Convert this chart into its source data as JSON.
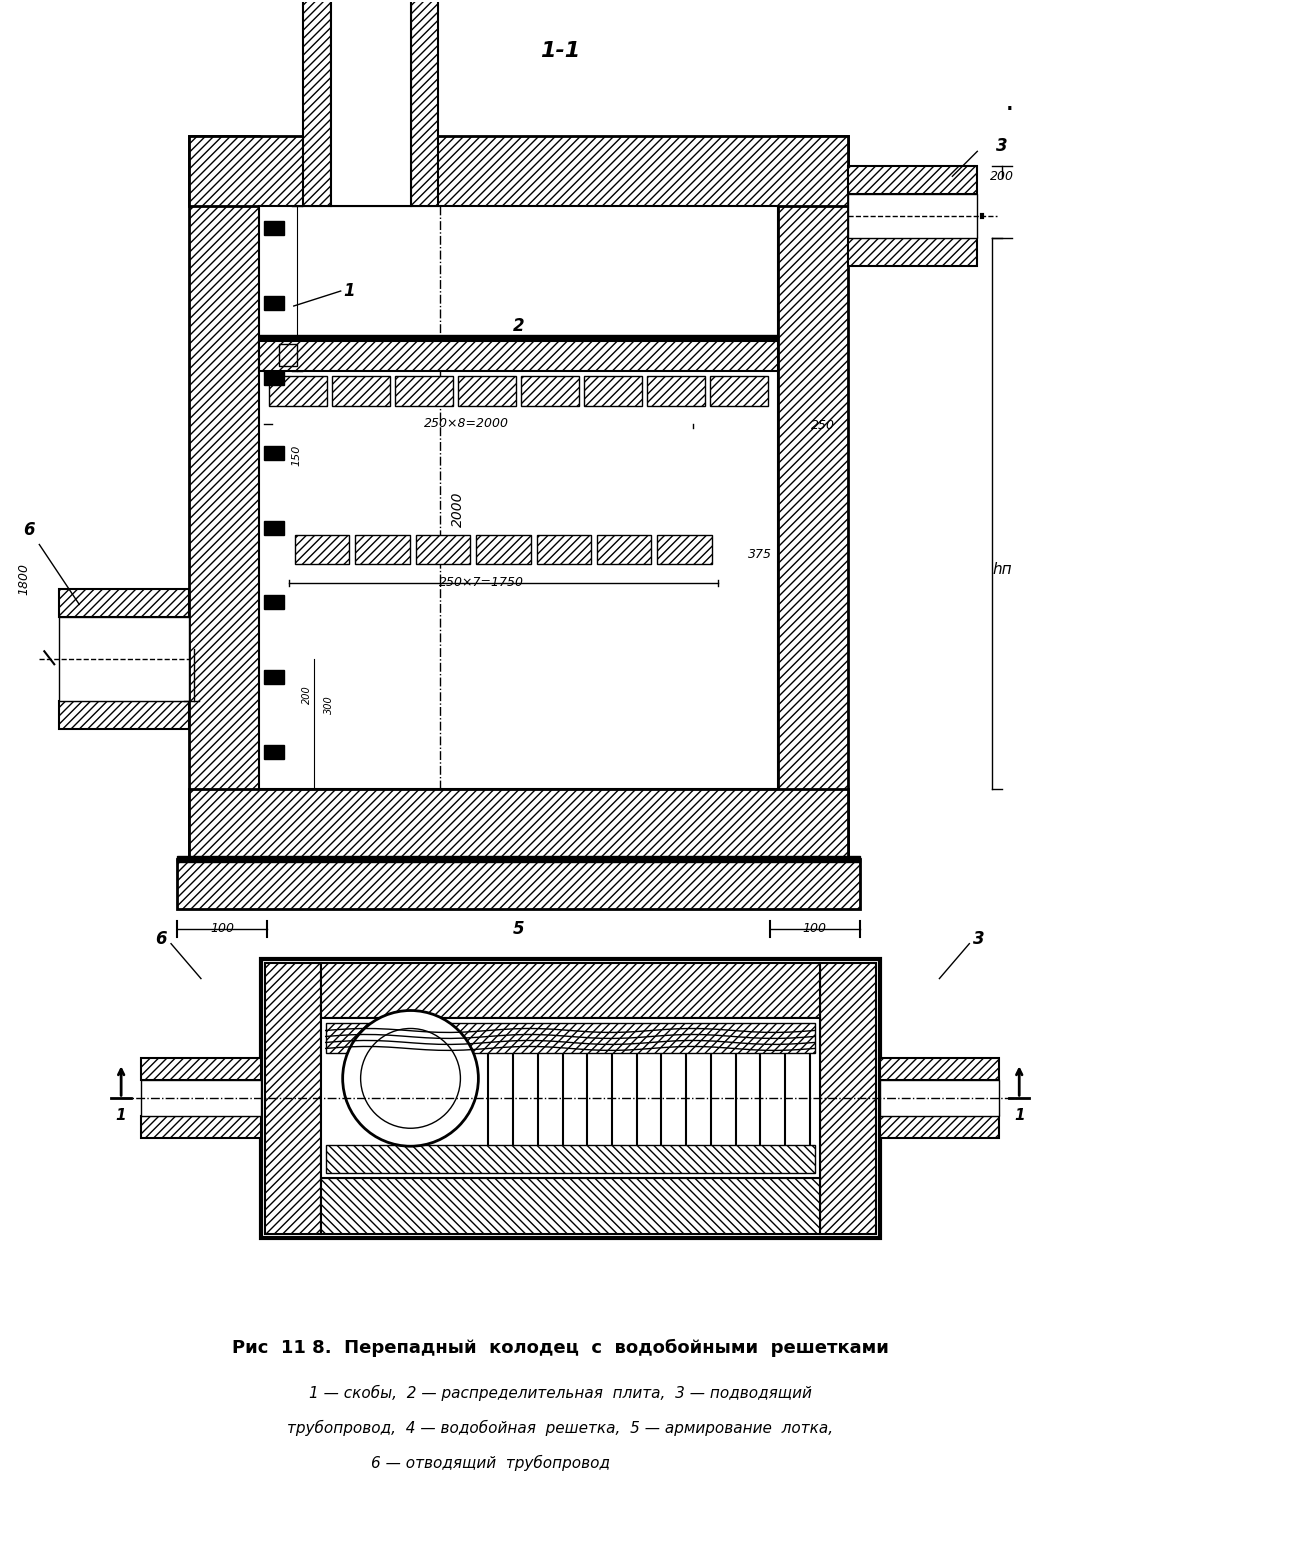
{
  "title": "1-1",
  "caption_line1": "Рис  11 8.  Перепадный  колодец  с  водобойными  решетками",
  "caption_line2": "1 — скобы,  2 — распределительная  плита,  3 — подводящий",
  "caption_line3": "трубопровод,  4 — водобойная  решетка,  5 — армирование  лотка,",
  "caption_line4": "6 — отводящий  трубопровод",
  "bg_color": "#ffffff",
  "line_color": "#000000"
}
